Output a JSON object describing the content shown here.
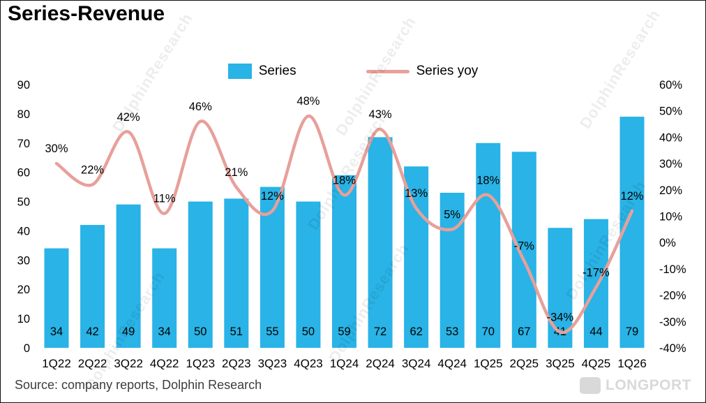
{
  "title": "Series-Revenue",
  "legend": {
    "series_label": "Series",
    "yoy_label": "Series yoy"
  },
  "source_note": "Source: company reports, Dolphin Research",
  "watermark_text": "DolphinResearch",
  "logo_text": "LONGPORT",
  "colors": {
    "bar": "#29b3e6",
    "line": "#e8a09a",
    "text": "#000000",
    "source_text": "#3d3d3d",
    "watermark": "rgba(0,0,0,0.07)",
    "logo": "#d9d9d9"
  },
  "chart_data": {
    "type": "bar",
    "subtype": "combo-bar-line",
    "title": "Series-Revenue",
    "categories": [
      "1Q22",
      "2Q22",
      "3Q22",
      "4Q22",
      "1Q23",
      "2Q23",
      "3Q23",
      "4Q23",
      "1Q24",
      "2Q24",
      "3Q24",
      "4Q24",
      "1Q25",
      "2Q25",
      "3Q25",
      "4Q25",
      "1Q26"
    ],
    "series": [
      {
        "name": "Series",
        "type": "bar",
        "axis": "left",
        "color": "#29b3e6",
        "values": [
          34,
          42,
          49,
          34,
          50,
          51,
          55,
          50,
          59,
          72,
          62,
          53,
          70,
          67,
          41,
          44,
          79
        ],
        "data_labels": [
          "34",
          "42",
          "49",
          "34",
          "50",
          "51",
          "55",
          "50",
          "59",
          "72",
          "62",
          "53",
          "70",
          "67",
          "41",
          "44",
          "79"
        ]
      },
      {
        "name": "Series yoy",
        "type": "line",
        "axis": "right",
        "color": "#e8a09a",
        "values_percent": [
          30,
          22,
          42,
          11,
          46,
          21,
          12,
          48,
          18,
          43,
          13,
          5,
          18,
          -7,
          -34,
          -17,
          12
        ],
        "data_labels": [
          "30%",
          "22%",
          "42%",
          "11%",
          "46%",
          "21%",
          "12%",
          "48%",
          "18%",
          "43%",
          "13%",
          "5%",
          "18%",
          "-7%",
          "-34%",
          "-17%",
          "12%"
        ]
      }
    ],
    "left_axis": {
      "min": 0,
      "max": 90,
      "tick_step": 10,
      "tick_labels": [
        "90",
        "80",
        "70",
        "60",
        "50",
        "40",
        "30",
        "20",
        "10",
        "0"
      ]
    },
    "right_axis": {
      "min": -40,
      "max": 60,
      "tick_step": 10,
      "tick_labels": [
        "60%",
        "50%",
        "40%",
        "30%",
        "20%",
        "10%",
        "0%",
        "-10%",
        "-20%",
        "-30%",
        "-40%"
      ]
    },
    "grid": false,
    "legend_position": "top"
  }
}
